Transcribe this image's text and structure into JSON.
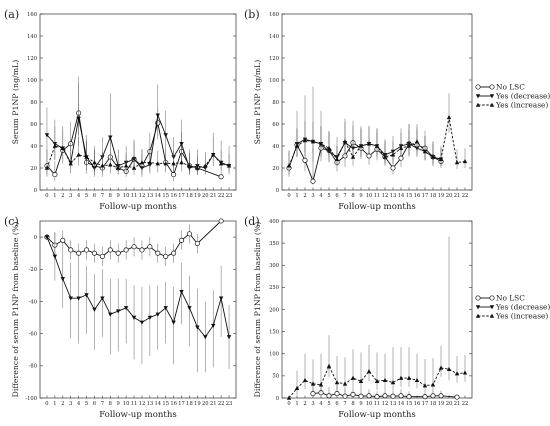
{
  "chart_data": [
    {
      "panel": "(a)",
      "type": "line",
      "ylabel": "Serum P1NP (ng/mL)",
      "xlabel": "Follow-up months",
      "ylim": [
        0,
        160
      ],
      "yticks": [
        0,
        20,
        40,
        60,
        80,
        100,
        120,
        140,
        160
      ],
      "xticks": [
        0,
        1,
        2,
        3,
        4,
        5,
        6,
        7,
        8,
        9,
        10,
        11,
        12,
        13,
        14,
        15,
        16,
        17,
        18,
        19,
        20,
        21,
        22,
        23
      ],
      "series": [
        {
          "name": "No LSC",
          "marker": "circle",
          "line": "solid",
          "x": [
            0,
            1,
            2,
            3,
            4,
            5,
            6,
            7,
            8,
            9,
            10,
            11,
            12,
            13,
            14,
            15,
            16,
            17,
            18,
            19,
            22
          ],
          "y": [
            22,
            14,
            36,
            42,
            70,
            25,
            22,
            20,
            30,
            20,
            17,
            28,
            22,
            35,
            61,
            25,
            14,
            35,
            22,
            20,
            12
          ],
          "err_up": [
            15,
            12,
            20,
            20,
            33,
            20,
            18,
            15,
            16,
            12,
            15,
            16,
            15,
            17,
            14,
            12,
            12,
            18,
            15,
            12,
            0
          ],
          "err_down": [
            8,
            6,
            12,
            14,
            20,
            10,
            8,
            8,
            10,
            6,
            5,
            10,
            8,
            12,
            12,
            8,
            6,
            12,
            8,
            6,
            0
          ]
        },
        {
          "name": "Yes (decrease)",
          "marker": "triangle-down",
          "line": "solid",
          "x": [
            0,
            1,
            2,
            3,
            4,
            5,
            6,
            7,
            8,
            9,
            10,
            11,
            12,
            13,
            14,
            15,
            16,
            17,
            18,
            19,
            20,
            21,
            22,
            23
          ],
          "y": [
            50,
            42,
            38,
            25,
            65,
            30,
            20,
            30,
            48,
            22,
            25,
            28,
            20,
            23,
            68,
            50,
            30,
            42,
            20,
            22,
            20,
            32,
            25,
            22
          ],
          "err_up": [
            25,
            22,
            20,
            18,
            32,
            20,
            15,
            18,
            40,
            15,
            15,
            18,
            12,
            15,
            28,
            22,
            18,
            22,
            14,
            15,
            14,
            20,
            20,
            18
          ],
          "err_down": [
            15,
            15,
            12,
            10,
            25,
            12,
            8,
            12,
            20,
            8,
            8,
            10,
            8,
            8,
            22,
            15,
            10,
            18,
            6,
            8,
            6,
            10,
            10,
            8
          ]
        },
        {
          "name": "Yes (increase)",
          "marker": "triangle-up",
          "line": "dashed",
          "x": [
            0,
            1,
            2,
            3,
            4,
            5,
            6,
            7,
            8,
            9,
            10,
            11,
            12,
            13,
            14,
            15,
            16,
            17,
            18,
            19,
            20,
            21,
            22,
            23
          ],
          "y": [
            20,
            40,
            38,
            24,
            32,
            30,
            25,
            22,
            23,
            20,
            22,
            20,
            25,
            25,
            24,
            24,
            24,
            25,
            22,
            20,
            22,
            32,
            24,
            22
          ],
          "err_up": [
            15,
            18,
            16,
            14,
            16,
            14,
            12,
            12,
            14,
            10,
            12,
            10,
            12,
            14,
            12,
            12,
            12,
            14,
            10,
            10,
            12,
            16,
            12,
            10
          ],
          "err_down": [
            8,
            12,
            10,
            8,
            10,
            8,
            8,
            6,
            8,
            6,
            6,
            6,
            8,
            8,
            8,
            8,
            8,
            8,
            6,
            6,
            6,
            10,
            6,
            6
          ]
        }
      ]
    },
    {
      "panel": "(b)",
      "type": "line",
      "ylabel": "Serum P1NP (ng/mL)",
      "xlabel": "Follow-up months",
      "ylim": [
        0,
        160
      ],
      "yticks": [
        0,
        20,
        40,
        60,
        80,
        100,
        120,
        140,
        160
      ],
      "xticks": [
        0,
        1,
        2,
        3,
        4,
        5,
        6,
        7,
        8,
        9,
        10,
        11,
        12,
        13,
        14,
        15,
        16,
        17,
        18,
        19,
        20,
        21,
        22
      ],
      "series": [
        {
          "name": "No LSC",
          "marker": "circle",
          "line": "solid",
          "x": [
            0,
            1,
            2,
            3,
            4,
            5,
            6,
            7,
            8,
            9,
            10,
            11,
            12,
            13,
            14,
            15,
            16,
            17,
            18,
            19
          ],
          "y": [
            20,
            41,
            27,
            8,
            38,
            36,
            25,
            31,
            43,
            38,
            31,
            37,
            30,
            20,
            29,
            42,
            41,
            38,
            30,
            26
          ],
          "err_up": [
            15,
            15,
            18,
            30,
            20,
            18,
            15,
            16,
            20,
            18,
            15,
            16,
            15,
            12,
            14,
            18,
            16,
            16,
            14,
            12
          ],
          "err_down": [
            8,
            10,
            10,
            3,
            12,
            10,
            8,
            10,
            12,
            10,
            8,
            10,
            8,
            6,
            8,
            12,
            10,
            10,
            8,
            6
          ]
        },
        {
          "name": "Yes (decrease)",
          "marker": "triangle-down",
          "line": "solid",
          "x": [
            1,
            2,
            3,
            4,
            5,
            6,
            7,
            8,
            9,
            10,
            11,
            12,
            13,
            14,
            15,
            16,
            17,
            18,
            19
          ],
          "y": [
            42,
            46,
            44,
            42,
            35,
            30,
            43,
            38,
            40,
            42,
            40,
            32,
            35,
            40,
            42,
            38,
            35,
            30,
            28
          ],
          "err_up": [
            30,
            40,
            50,
            30,
            18,
            18,
            22,
            20,
            18,
            16,
            16,
            14,
            14,
            16,
            18,
            16,
            14,
            14,
            12
          ],
          "err_down": [
            12,
            15,
            18,
            12,
            10,
            8,
            12,
            10,
            10,
            10,
            8,
            8,
            8,
            10,
            10,
            8,
            8,
            8,
            6
          ]
        },
        {
          "name": "Yes (increase)",
          "marker": "triangle-up",
          "line": "dashed",
          "x": [
            0,
            1,
            2,
            3,
            4,
            5,
            6,
            7,
            8,
            9,
            10,
            11,
            12,
            13,
            14,
            15,
            16,
            17,
            18,
            19,
            20,
            21,
            22
          ],
          "y": [
            22,
            40,
            45,
            44,
            42,
            38,
            28,
            44,
            30,
            40,
            42,
            40,
            30,
            32,
            38,
            40,
            44,
            35,
            30,
            28,
            66,
            25,
            26
          ],
          "err_up": [
            14,
            16,
            18,
            18,
            16,
            14,
            12,
            18,
            14,
            16,
            16,
            16,
            12,
            12,
            14,
            14,
            16,
            14,
            12,
            10,
            22,
            12,
            12
          ],
          "err_down": [
            8,
            10,
            10,
            10,
            10,
            8,
            6,
            10,
            8,
            10,
            10,
            10,
            6,
            8,
            8,
            8,
            10,
            8,
            6,
            6,
            14,
            6,
            6
          ]
        }
      ]
    },
    {
      "panel": "(c)",
      "type": "line",
      "ylabel": "Difference of serum P1NP from baseline (%)",
      "xlabel": "Follow-up months",
      "ylim": [
        -100,
        10
      ],
      "yticks": [
        -100,
        -80,
        -60,
        -40,
        -20,
        0
      ],
      "xticks": [
        0,
        1,
        2,
        3,
        4,
        5,
        6,
        7,
        8,
        9,
        10,
        11,
        12,
        13,
        14,
        15,
        16,
        17,
        18,
        19,
        20,
        21,
        22,
        23
      ],
      "series": [
        {
          "name": "No LSC",
          "marker": "circle",
          "line": "solid",
          "x": [
            0,
            1,
            2,
            3,
            4,
            5,
            6,
            7,
            8,
            9,
            10,
            11,
            12,
            13,
            14,
            15,
            16,
            17,
            18,
            19,
            22
          ],
          "y": [
            0,
            -5,
            -2,
            -8,
            -10,
            -8,
            -10,
            -12,
            -8,
            -10,
            -8,
            -6,
            -8,
            -6,
            -10,
            -12,
            -10,
            -2,
            2,
            -4,
            10
          ],
          "err_up": [
            0,
            8,
            6,
            6,
            6,
            6,
            6,
            6,
            6,
            6,
            6,
            6,
            6,
            6,
            6,
            6,
            6,
            6,
            6,
            6,
            0
          ],
          "err_down": [
            0,
            8,
            6,
            6,
            6,
            6,
            6,
            6,
            6,
            6,
            6,
            6,
            6,
            6,
            6,
            6,
            6,
            6,
            6,
            6,
            0
          ]
        },
        {
          "name": "Yes (decrease)",
          "marker": "triangle-down",
          "line": "solid",
          "x": [
            0,
            1,
            2,
            3,
            4,
            5,
            6,
            7,
            8,
            9,
            10,
            11,
            12,
            13,
            14,
            15,
            16,
            17,
            18,
            19,
            20,
            21,
            22,
            23
          ],
          "y": [
            0,
            -12,
            -26,
            -38,
            -38,
            -36,
            -45,
            -38,
            -48,
            -46,
            -44,
            -50,
            -53,
            -50,
            -48,
            -44,
            -53,
            -34,
            -44,
            -56,
            -62,
            -55,
            -38,
            -62
          ],
          "err_up": [
            0,
            15,
            18,
            22,
            22,
            18,
            22,
            18,
            22,
            20,
            18,
            20,
            22,
            20,
            18,
            16,
            22,
            18,
            20,
            24,
            22,
            22,
            20,
            20
          ],
          "err_down": [
            0,
            15,
            18,
            25,
            28,
            24,
            25,
            24,
            25,
            25,
            22,
            26,
            26,
            24,
            22,
            22,
            26,
            20,
            24,
            28,
            22,
            26,
            24,
            20
          ]
        }
      ]
    },
    {
      "panel": "(d)",
      "type": "line",
      "ylabel": "Difference of serum P1NP from baseline (%)",
      "xlabel": "Follow-up months",
      "ylim": [
        0,
        400
      ],
      "yticks": [
        0,
        50,
        100,
        150,
        200,
        250,
        300,
        350,
        400
      ],
      "xticks": [
        0,
        1,
        2,
        3,
        4,
        5,
        6,
        7,
        8,
        9,
        10,
        11,
        12,
        13,
        14,
        15,
        16,
        17,
        18,
        19,
        20,
        21,
        22
      ],
      "series": [
        {
          "name": "No LSC",
          "marker": "circle",
          "line": "solid",
          "x": [
            3,
            4,
            5,
            6,
            7,
            8,
            9,
            10,
            11,
            12,
            13,
            14,
            15,
            17,
            18,
            19,
            21
          ],
          "y": [
            10,
            12,
            5,
            10,
            4,
            8,
            4,
            5,
            3,
            5,
            4,
            5,
            3,
            3,
            5,
            5,
            2
          ],
          "err_up": [
            20,
            20,
            20,
            20,
            15,
            15,
            15,
            15,
            12,
            15,
            12,
            15,
            12,
            10,
            12,
            12,
            0
          ],
          "err_down": [
            6,
            6,
            4,
            6,
            4,
            5,
            3,
            4,
            2,
            4,
            3,
            4,
            2,
            2,
            4,
            4,
            0
          ]
        },
        {
          "name": "Yes (increase)",
          "marker": "triangle-up",
          "line": "dashed",
          "x": [
            0,
            1,
            2,
            3,
            4,
            5,
            6,
            7,
            8,
            9,
            10,
            11,
            12,
            13,
            14,
            15,
            16,
            17,
            18,
            19,
            20,
            21,
            22
          ],
          "y": [
            0,
            22,
            40,
            32,
            30,
            72,
            35,
            32,
            45,
            38,
            60,
            38,
            40,
            35,
            45,
            45,
            40,
            28,
            30,
            68,
            65,
            55,
            57
          ],
          "err_up": [
            0,
            40,
            60,
            55,
            70,
            70,
            60,
            60,
            65,
            65,
            60,
            65,
            60,
            80,
            70,
            70,
            60,
            60,
            60,
            50,
            300,
            40,
            40
          ],
          "err_down": [
            0,
            15,
            20,
            18,
            18,
            25,
            18,
            18,
            22,
            20,
            22,
            20,
            20,
            18,
            20,
            20,
            18,
            15,
            15,
            20,
            25,
            20,
            20
          ]
        }
      ]
    }
  ],
  "legend": {
    "items": [
      {
        "name": "No LSC",
        "marker": "circle",
        "line": "solid"
      },
      {
        "name": "Yes (decrease)",
        "marker": "triangle-down",
        "line": "solid"
      },
      {
        "name": "Yes (increase)",
        "marker": "triangle-up",
        "line": "dashed"
      }
    ]
  }
}
